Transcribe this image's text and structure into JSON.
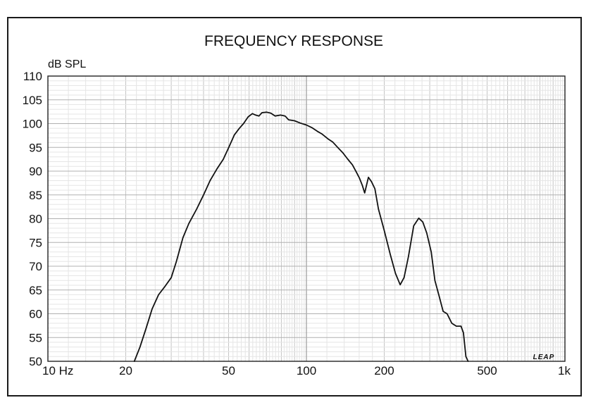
{
  "chart_data": {
    "type": "line",
    "title": "FREQUENCY RESPONSE",
    "ylabel": "dB SPL",
    "xlabel": "",
    "x_scale": "log",
    "xlim": [
      10,
      1000
    ],
    "ylim": [
      50,
      110
    ],
    "grid": true,
    "x_ticks": [
      {
        "value": 10,
        "label": "10 Hz"
      },
      {
        "value": 20,
        "label": "20"
      },
      {
        "value": 50,
        "label": "50"
      },
      {
        "value": 100,
        "label": "100"
      },
      {
        "value": 200,
        "label": "200"
      },
      {
        "value": 500,
        "label": "500"
      },
      {
        "value": 1000,
        "label": "1k"
      }
    ],
    "y_ticks": [
      50,
      55,
      60,
      65,
      70,
      75,
      80,
      85,
      90,
      95,
      100,
      105,
      110
    ],
    "watermark": "LEAP",
    "series": [
      {
        "color": "#111111",
        "points": [
          [
            21.6,
            50
          ],
          [
            22.7,
            53
          ],
          [
            24.0,
            57
          ],
          [
            25.3,
            61
          ],
          [
            26.8,
            64
          ],
          [
            28.4,
            65.8
          ],
          [
            30.0,
            67.6
          ],
          [
            31.4,
            71
          ],
          [
            33.3,
            76
          ],
          [
            35.1,
            79
          ],
          [
            37.6,
            82
          ],
          [
            40.0,
            85
          ],
          [
            42.4,
            88
          ],
          [
            45.0,
            90.4
          ],
          [
            47.7,
            92.5
          ],
          [
            50.1,
            95
          ],
          [
            52.6,
            97.6
          ],
          [
            55.0,
            99
          ],
          [
            57.1,
            100
          ],
          [
            59.5,
            101.4
          ],
          [
            61.8,
            102.1
          ],
          [
            63.6,
            101.8
          ],
          [
            65.5,
            101.6
          ],
          [
            67.3,
            102.3
          ],
          [
            70.0,
            102.4
          ],
          [
            72.8,
            102.2
          ],
          [
            75.7,
            101.6
          ],
          [
            79.5,
            101.8
          ],
          [
            82.7,
            101.6
          ],
          [
            85.3,
            100.8
          ],
          [
            90.0,
            100.6
          ],
          [
            94.8,
            100.1
          ],
          [
            100.0,
            99.7
          ],
          [
            105.4,
            99.1
          ],
          [
            110.1,
            98.4
          ],
          [
            115.0,
            97.8
          ],
          [
            121.1,
            96.8
          ],
          [
            126.5,
            96.1
          ],
          [
            132.1,
            95
          ],
          [
            138.1,
            93.9
          ],
          [
            144.2,
            92.6
          ],
          [
            150.7,
            91.3
          ],
          [
            156.0,
            89.8
          ],
          [
            160.2,
            88.6
          ],
          [
            164.6,
            87
          ],
          [
            168.0,
            85.4
          ],
          [
            173.7,
            88.7
          ],
          [
            178.4,
            87.8
          ],
          [
            184.0,
            86.3
          ],
          [
            190.0,
            82
          ],
          [
            200.0,
            77.5
          ],
          [
            211.0,
            72.5
          ],
          [
            221.0,
            68.5
          ],
          [
            230.5,
            66.1
          ],
          [
            238.6,
            67.6
          ],
          [
            248.0,
            72
          ],
          [
            260.0,
            78.5
          ],
          [
            272.0,
            80.1
          ],
          [
            282.0,
            79.3
          ],
          [
            292.0,
            77
          ],
          [
            304.0,
            73
          ],
          [
            314.0,
            67
          ],
          [
            325.0,
            64
          ],
          [
            338.0,
            60.5
          ],
          [
            350.0,
            60
          ],
          [
            365.0,
            58
          ],
          [
            380.0,
            57.4
          ],
          [
            396.0,
            57.4
          ],
          [
            405.0,
            56
          ],
          [
            414.0,
            51
          ],
          [
            422.0,
            50
          ]
        ]
      }
    ]
  }
}
